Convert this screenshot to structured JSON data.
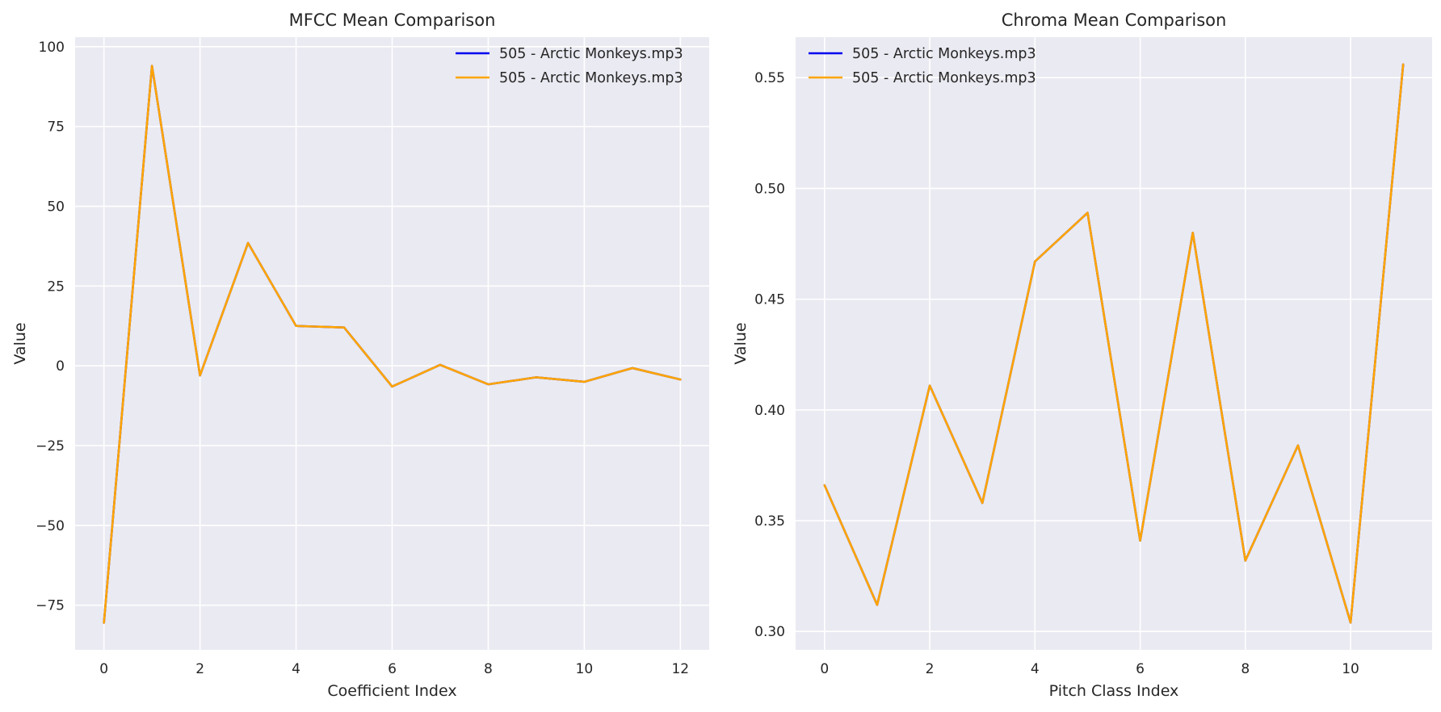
{
  "figure": {
    "background": "#ffffff",
    "plot_bg": "#eaeaf2",
    "grid_color": "#ffffff",
    "text_color": "#262626"
  },
  "chart_data": [
    {
      "type": "line",
      "title": "MFCC Mean Comparison",
      "xlabel": "Coefficient Index",
      "ylabel": "Value",
      "xlim": [
        -0.6,
        12.6
      ],
      "ylim": [
        -89,
        103
      ],
      "xticks": [
        0,
        2,
        4,
        6,
        8,
        10,
        12
      ],
      "xtick_labels": [
        "0",
        "2",
        "4",
        "6",
        "8",
        "10",
        "12"
      ],
      "yticks": [
        -75,
        -50,
        -25,
        0,
        25,
        50,
        75,
        100
      ],
      "ytick_labels": [
        "−75",
        "−50",
        "−25",
        "0",
        "25",
        "50",
        "75",
        "100"
      ],
      "grid": true,
      "legend_position": "upper right",
      "x": [
        0,
        1,
        2,
        3,
        4,
        5,
        6,
        7,
        8,
        9,
        10,
        11,
        12
      ],
      "series": [
        {
          "name": "505 - Arctic Monkeys.mp3",
          "color": "#0000ee",
          "values": [
            -80.5,
            94.0,
            -3.0,
            38.5,
            12.5,
            12.0,
            -6.5,
            0.3,
            -5.8,
            -3.6,
            -5.0,
            -0.7,
            -4.3
          ]
        },
        {
          "name": "505 - Arctic Monkeys.mp3",
          "color": "#ffa500",
          "values": [
            -80.5,
            94.0,
            -3.0,
            38.5,
            12.5,
            12.0,
            -6.5,
            0.3,
            -5.8,
            -3.6,
            -5.0,
            -0.7,
            -4.3
          ]
        }
      ]
    },
    {
      "type": "line",
      "title": "Chroma Mean Comparison",
      "xlabel": "Pitch Class Index",
      "ylabel": "Value",
      "xlim": [
        -0.55,
        11.55
      ],
      "ylim": [
        0.2917,
        0.5683
      ],
      "xticks": [
        0,
        2,
        4,
        6,
        8,
        10
      ],
      "xtick_labels": [
        "0",
        "2",
        "4",
        "6",
        "8",
        "10"
      ],
      "yticks": [
        0.3,
        0.35,
        0.4,
        0.45,
        0.5,
        0.55
      ],
      "ytick_labels": [
        "0.30",
        "0.35",
        "0.40",
        "0.45",
        "0.50",
        "0.55"
      ],
      "grid": true,
      "legend_position": "upper left",
      "x": [
        0,
        1,
        2,
        3,
        4,
        5,
        6,
        7,
        8,
        9,
        10,
        11
      ],
      "series": [
        {
          "name": "505 - Arctic Monkeys.mp3",
          "color": "#0000ee",
          "values": [
            0.366,
            0.312,
            0.411,
            0.358,
            0.467,
            0.489,
            0.341,
            0.48,
            0.332,
            0.384,
            0.304,
            0.556
          ]
        },
        {
          "name": "505 - Arctic Monkeys.mp3",
          "color": "#ffa500",
          "values": [
            0.366,
            0.312,
            0.411,
            0.358,
            0.467,
            0.489,
            0.341,
            0.48,
            0.332,
            0.384,
            0.304,
            0.556
          ]
        }
      ]
    }
  ]
}
